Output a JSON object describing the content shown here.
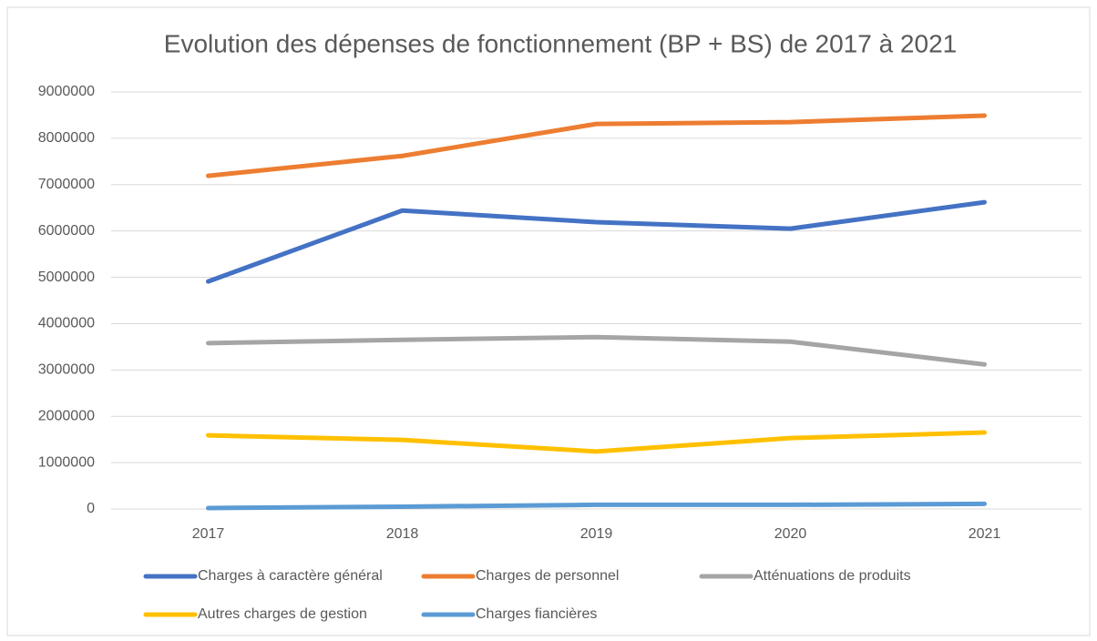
{
  "chart_data": {
    "type": "line",
    "title": "Evolution des dépenses de fonctionnement (BP + BS) de 2017 à 2021",
    "categories": [
      "2017",
      "2018",
      "2019",
      "2020",
      "2021"
    ],
    "series": [
      {
        "name": "Charges à caractère général",
        "color": "#4472c4",
        "values": [
          4910000,
          6440000,
          6190000,
          6050000,
          6620000
        ]
      },
      {
        "name": "Charges de personnel",
        "color": "#ed7d31",
        "values": [
          7190000,
          7620000,
          8310000,
          8350000,
          8490000
        ]
      },
      {
        "name": "Atténuations de produits",
        "color": "#a5a5a5",
        "values": [
          3580000,
          3650000,
          3710000,
          3610000,
          3120000
        ]
      },
      {
        "name": "Autres charges de gestion",
        "color": "#ffc000",
        "values": [
          1590000,
          1490000,
          1240000,
          1530000,
          1650000
        ]
      },
      {
        "name": "Charges fiancières",
        "color": "#5b9bd5",
        "values": [
          20000,
          50000,
          90000,
          90000,
          110000
        ]
      }
    ],
    "ylim": [
      0,
      9000000
    ],
    "yticks": [
      0,
      1000000,
      2000000,
      3000000,
      4000000,
      5000000,
      6000000,
      7000000,
      8000000,
      9000000
    ],
    "grid": true,
    "legend": "bottom"
  }
}
